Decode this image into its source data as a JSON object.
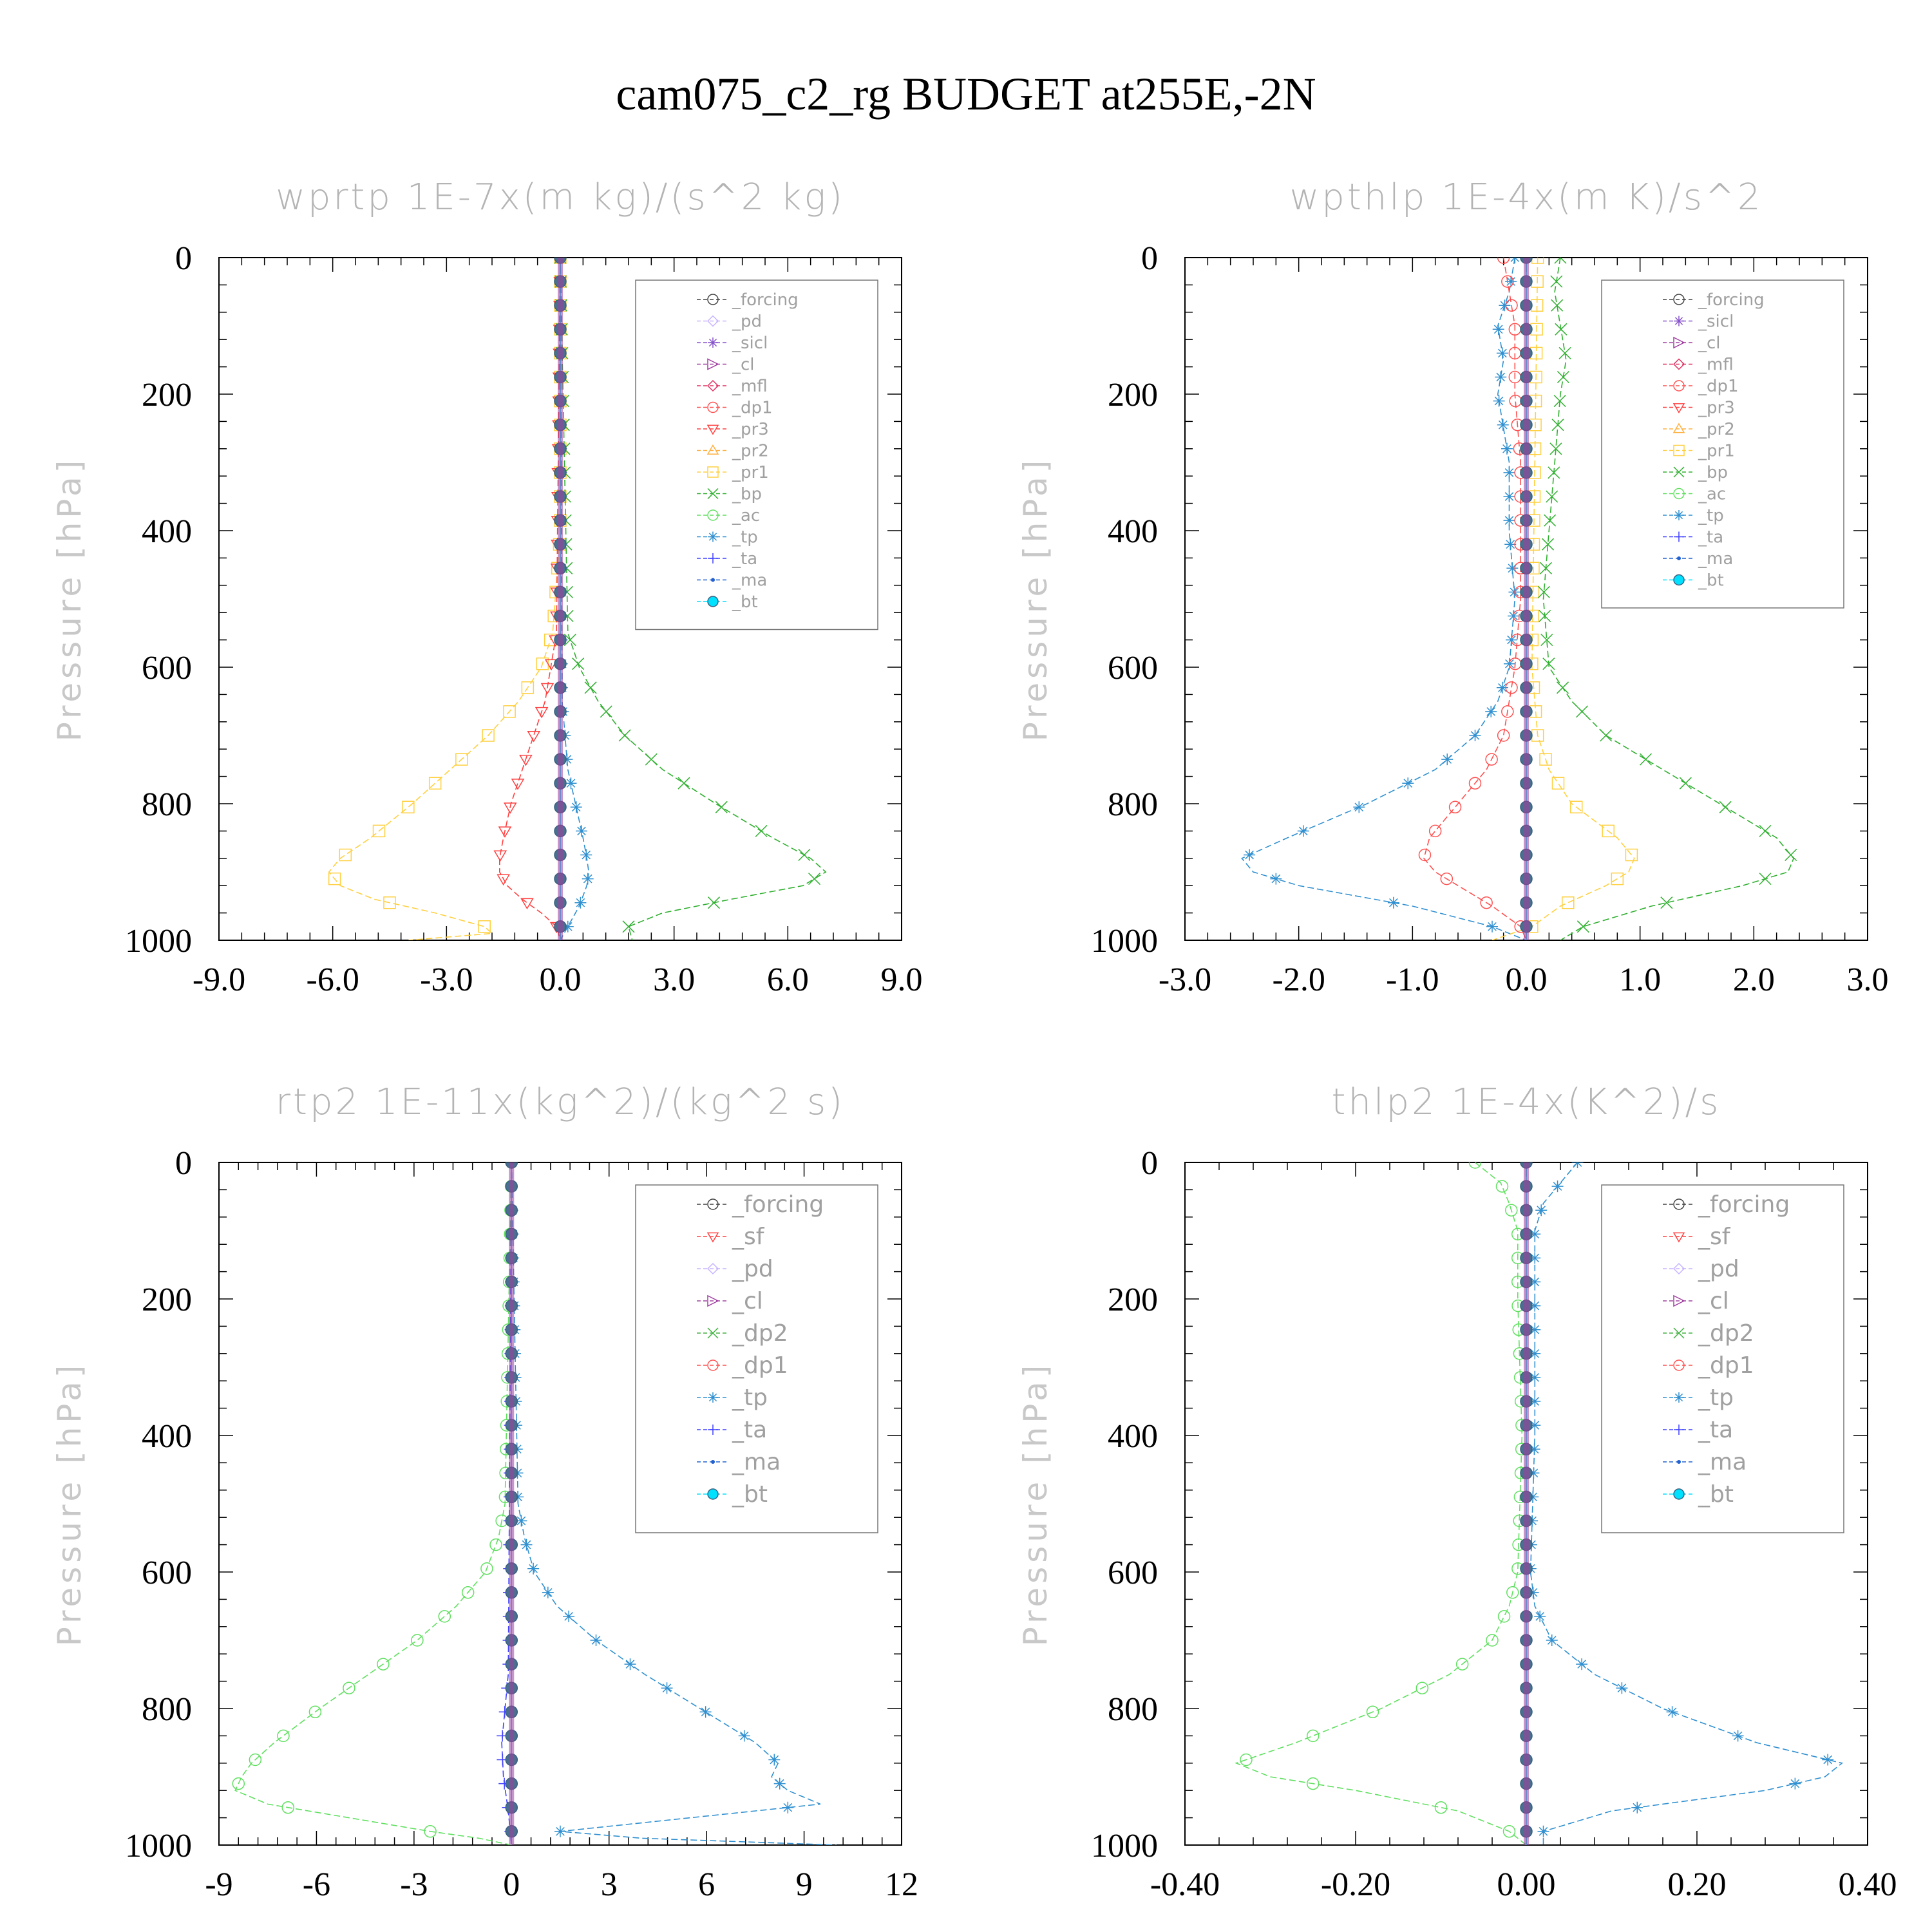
{
  "figure": {
    "title": "cam075_c2_rg  BUDGET at255E,-2N"
  },
  "colors": {
    "forcing": "#404040",
    "pd": "#c8b4ff",
    "sicl": "#8855cc",
    "cl": "#a040a0",
    "mfl": "#e03060",
    "dp1": "#ff5050",
    "pr3": "#ff4040",
    "pr2": "#ffb040",
    "pr1": "#ffd040",
    "bp": "#30b030",
    "ac": "#60e060",
    "tp": "#3090d0",
    "ta": "#4040ff",
    "ma": "#2060d0",
    "bt": "#00e0ff",
    "sf": "#ff4040",
    "dp2": "#40b040"
  },
  "chart_data": [
    {
      "type": "line",
      "title": "wprtp   1E-7x(m kg)/(s^2 kg)",
      "ylabel": "Pressure [hPa]",
      "xlim": [
        -9,
        9
      ],
      "ylim": [
        1000,
        0
      ],
      "xticks": [
        "-9.0",
        "-6.0",
        "-3.0",
        "0.0",
        "3.0",
        "6.0",
        "9.0"
      ],
      "xtick_values": [
        -9,
        -6,
        -3,
        0,
        3,
        6,
        9
      ],
      "yticks": [
        "0",
        "200",
        "400",
        "600",
        "800",
        "1000"
      ],
      "ytick_values": [
        0,
        200,
        400,
        600,
        800,
        1000
      ],
      "legend": [
        "_forcing",
        "_pd",
        "_sicl",
        "_cl",
        "_mfl",
        "_dp1",
        "_pr3",
        "_pr2",
        "_pr1",
        "_bp",
        "_ac",
        "_tp",
        "_ta",
        "_ma",
        "_bt"
      ],
      "series": [
        {
          "name": "_pr1",
          "color": "#ffd040",
          "y": [
            0,
            400,
            550,
            600,
            650,
            700,
            750,
            800,
            850,
            880,
            900,
            920,
            940,
            960,
            980,
            990,
            1000
          ],
          "x": [
            0,
            0,
            -0.2,
            -0.5,
            -1.1,
            -1.9,
            -2.9,
            -3.9,
            -5.0,
            -5.8,
            -6.1,
            -5.8,
            -4.9,
            -3.3,
            -2.0,
            -1.8,
            -4.0
          ]
        },
        {
          "name": "_pr3",
          "color": "#ff4040",
          "y": [
            0,
            550,
            650,
            700,
            750,
            800,
            850,
            880,
            900,
            920,
            940,
            960,
            980,
            1000
          ],
          "x": [
            0,
            -0.1,
            -0.4,
            -0.7,
            -1.0,
            -1.3,
            -1.5,
            -1.6,
            -1.6,
            -1.4,
            -1.0,
            -0.5,
            -0.1,
            0
          ]
        },
        {
          "name": "_bp",
          "color": "#30b030",
          "y": [
            0,
            550,
            600,
            650,
            700,
            750,
            800,
            850,
            880,
            900,
            920,
            940,
            960,
            980,
            1000
          ],
          "x": [
            0,
            0.2,
            0.5,
            1.0,
            1.7,
            2.7,
            4.1,
            5.6,
            6.6,
            7.0,
            6.4,
            4.5,
            2.7,
            1.8,
            1.9
          ]
        },
        {
          "name": "_tp",
          "color": "#3090d0",
          "y": [
            0,
            650,
            750,
            800,
            850,
            880,
            900,
            920,
            950,
            980,
            1000
          ],
          "x": [
            0,
            0.05,
            0.2,
            0.4,
            0.6,
            0.7,
            0.75,
            0.7,
            0.5,
            0.2,
            0
          ]
        },
        {
          "name": "_bt",
          "color": "#00e0ff",
          "y": [
            0,
            1000
          ],
          "x": [
            0,
            0
          ]
        }
      ]
    },
    {
      "type": "line",
      "title": "wpthlp   1E-4x(m K)/s^2",
      "ylabel": "Pressure [hPa]",
      "xlim": [
        -3,
        3
      ],
      "ylim": [
        1000,
        0
      ],
      "xticks": [
        "-3.0",
        "-2.0",
        "-1.0",
        "0.0",
        "1.0",
        "2.0",
        "3.0"
      ],
      "xtick_values": [
        -3,
        -2,
        -1,
        0,
        1,
        2,
        3
      ],
      "yticks": [
        "0",
        "200",
        "400",
        "600",
        "800",
        "1000"
      ],
      "ytick_values": [
        0,
        200,
        400,
        600,
        800,
        1000
      ],
      "legend": [
        "_forcing",
        "_sicl",
        "_cl",
        "_mfl",
        "_dp1",
        "_pr3",
        "_pr2",
        "_pr1",
        "_bp",
        "_ac",
        "_tp",
        "_ta",
        "_ma",
        "_bt"
      ],
      "series": [
        {
          "name": "_tp",
          "color": "#3090d0",
          "y": [
            0,
            50,
            100,
            150,
            200,
            300,
            400,
            500,
            600,
            650,
            700,
            750,
            800,
            850,
            880,
            900,
            920,
            950,
            980,
            1000
          ],
          "x": [
            -0.1,
            -0.15,
            -0.25,
            -0.2,
            -0.25,
            -0.15,
            -0.15,
            -0.1,
            -0.15,
            -0.25,
            -0.45,
            -0.8,
            -1.4,
            -2.1,
            -2.5,
            -2.4,
            -2.0,
            -1.0,
            -0.3,
            0
          ]
        },
        {
          "name": "_dp1",
          "color": "#ff5050",
          "y": [
            0,
            50,
            100,
            200,
            300,
            500,
            600,
            700,
            750,
            800,
            850,
            880,
            900,
            920,
            950,
            980,
            1000
          ],
          "x": [
            -0.2,
            -0.15,
            -0.1,
            -0.1,
            -0.05,
            -0.05,
            -0.1,
            -0.2,
            -0.35,
            -0.6,
            -0.85,
            -0.9,
            -0.8,
            -0.6,
            -0.3,
            -0.05,
            0
          ]
        },
        {
          "name": "_pr1",
          "color": "#ffd040",
          "y": [
            0,
            600,
            700,
            750,
            800,
            850,
            880,
            900,
            920,
            950,
            980,
            1000
          ],
          "x": [
            0.1,
            0.05,
            0.1,
            0.2,
            0.4,
            0.8,
            0.95,
            0.9,
            0.7,
            0.3,
            0.05,
            -0.3
          ]
        },
        {
          "name": "_bp",
          "color": "#30b030",
          "y": [
            0,
            50,
            100,
            150,
            200,
            300,
            400,
            500,
            600,
            650,
            700,
            750,
            800,
            850,
            880,
            900,
            920,
            950,
            980,
            1000
          ],
          "x": [
            0.3,
            0.25,
            0.3,
            0.35,
            0.3,
            0.25,
            0.2,
            0.15,
            0.2,
            0.4,
            0.7,
            1.2,
            1.7,
            2.2,
            2.35,
            2.3,
            1.9,
            1.1,
            0.5,
            0.3
          ]
        },
        {
          "name": "_bt",
          "color": "#00e0ff",
          "y": [
            0,
            1000
          ],
          "x": [
            0,
            0
          ]
        }
      ]
    },
    {
      "type": "line",
      "title": "rtp2   1E-11x(kg^2)/(kg^2 s)",
      "ylabel": "Pressure [hPa]",
      "xlim": [
        -9,
        12
      ],
      "ylim": [
        1000,
        0
      ],
      "xticks": [
        "-9",
        "-6",
        "-3",
        "0",
        "3",
        "6",
        "9",
        "12"
      ],
      "xtick_values": [
        -9,
        -6,
        -3,
        0,
        3,
        6,
        9,
        12
      ],
      "yticks": [
        "0",
        "200",
        "400",
        "600",
        "800",
        "1000"
      ],
      "ytick_values": [
        0,
        200,
        400,
        600,
        800,
        1000
      ],
      "legend": [
        "_forcing",
        "_sf",
        "_pd",
        "_cl",
        "_dp2",
        "_dp1",
        "_tp",
        "_ta",
        "_ma",
        "_bt"
      ],
      "series": [
        {
          "name": "_dp1",
          "color": "#60e060",
          "y": [
            0,
            500,
            550,
            600,
            650,
            700,
            750,
            800,
            850,
            880,
            900,
            920,
            940,
            960,
            980,
            990,
            1000
          ],
          "x": [
            0,
            -0.2,
            -0.4,
            -0.8,
            -1.7,
            -2.9,
            -4.4,
            -5.9,
            -7.3,
            -8.0,
            -8.3,
            -8.5,
            -7.5,
            -5.0,
            -2.5,
            -1.0,
            0
          ]
        },
        {
          "name": "_tp",
          "color": "#3090d0",
          "y": [
            0,
            500,
            550,
            600,
            650,
            700,
            750,
            800,
            850,
            880,
            900,
            920,
            940,
            960,
            980,
            990,
            1000
          ],
          "x": [
            0,
            0.2,
            0.4,
            0.7,
            1.4,
            2.6,
            4.1,
            5.8,
            7.5,
            8.2,
            8.0,
            8.5,
            9.5,
            5.5,
            1.5,
            4.0,
            10.0
          ]
        },
        {
          "name": "_ta",
          "color": "#4040ff",
          "y": [
            0,
            750,
            800,
            850,
            900,
            950,
            1000
          ],
          "x": [
            0,
            -0.1,
            -0.2,
            -0.3,
            -0.25,
            -0.1,
            0
          ]
        },
        {
          "name": "_bt",
          "color": "#00e0ff",
          "y": [
            0,
            1000
          ],
          "x": [
            0,
            0
          ]
        }
      ]
    },
    {
      "type": "line",
      "title": "thlp2   1E-4x(K^2)/s",
      "ylabel": "Pressure [hPa]",
      "xlim": [
        -0.4,
        0.4
      ],
      "ylim": [
        1000,
        0
      ],
      "xticks": [
        "-0.40",
        "-0.20",
        "0.00",
        "0.20",
        "0.40"
      ],
      "xtick_values": [
        -0.4,
        -0.2,
        0,
        0.2,
        0.4
      ],
      "yticks": [
        "0",
        "200",
        "400",
        "600",
        "800",
        "1000"
      ],
      "ytick_values": [
        0,
        200,
        400,
        600,
        800,
        1000
      ],
      "legend": [
        "_forcing",
        "_sf",
        "_pd",
        "_cl",
        "_dp2",
        "_dp1",
        "_tp",
        "_ta",
        "_ma",
        "_bt"
      ],
      "series": [
        {
          "name": "_dp1",
          "color": "#60e060",
          "y": [
            0,
            30,
            60,
            100,
            200,
            400,
            600,
            650,
            700,
            750,
            800,
            850,
            880,
            900,
            920,
            950,
            980,
            1000
          ],
          "x": [
            -0.06,
            -0.03,
            -0.02,
            -0.01,
            -0.01,
            -0.005,
            -0.01,
            -0.02,
            -0.04,
            -0.09,
            -0.17,
            -0.27,
            -0.34,
            -0.3,
            -0.2,
            -0.08,
            -0.02,
            0
          ]
        },
        {
          "name": "_tp",
          "color": "#3090d0",
          "y": [
            0,
            30,
            60,
            100,
            200,
            400,
            600,
            650,
            700,
            750,
            800,
            850,
            880,
            900,
            920,
            950,
            980,
            1000
          ],
          "x": [
            0.06,
            0.04,
            0.02,
            0.01,
            0.01,
            0.01,
            0.005,
            0.01,
            0.03,
            0.08,
            0.16,
            0.27,
            0.37,
            0.35,
            0.28,
            0.1,
            0.02,
            0.02
          ]
        },
        {
          "name": "_bt",
          "color": "#00e0ff",
          "y": [
            0,
            1000
          ],
          "x": [
            0,
            0
          ]
        }
      ]
    }
  ]
}
